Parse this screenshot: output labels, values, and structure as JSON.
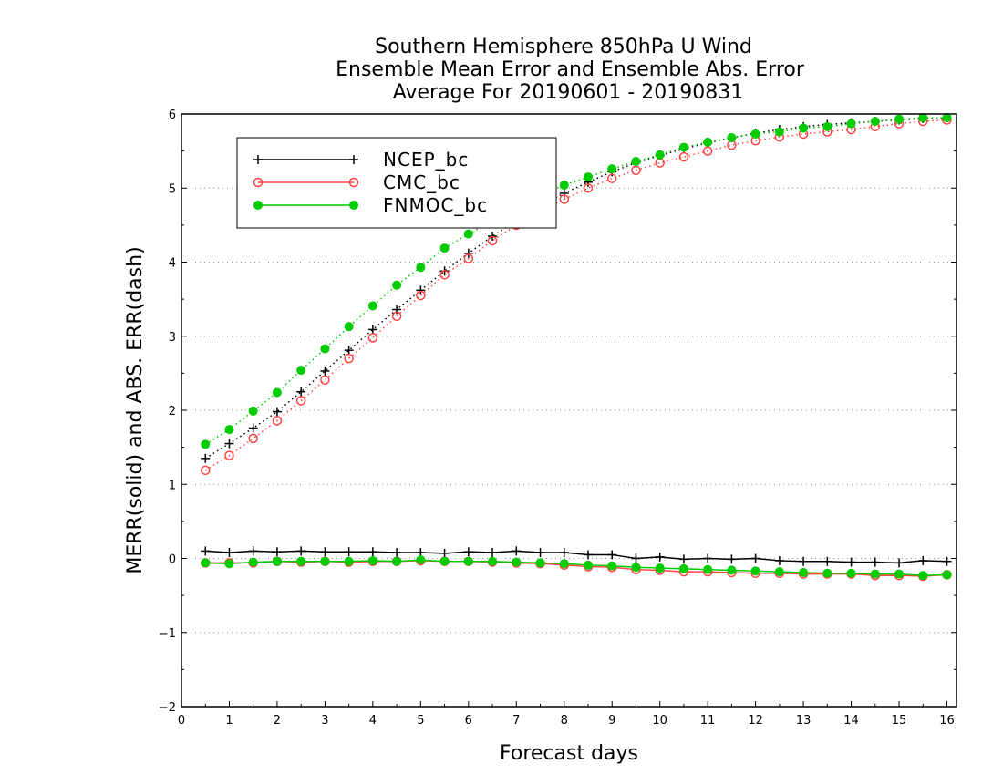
{
  "chart_data": {
    "type": "line",
    "title": [
      "Southern Hemisphere 850hPa U Wind",
      "Ensemble Mean Error and Ensemble Abs. Error",
      "Average For 20190601 - 20190831"
    ],
    "xlabel": "Forecast days",
    "ylabel": "MERR(solid) and ABS. ERR(dash)",
    "xlim": [
      0,
      16.2
    ],
    "ylim": [
      -2,
      6
    ],
    "xticks": [
      0,
      1,
      2,
      3,
      4,
      5,
      6,
      7,
      8,
      9,
      10,
      11,
      12,
      13,
      14,
      15,
      16
    ],
    "yticks": [
      -2,
      -1,
      0,
      1,
      2,
      3,
      4,
      5,
      6
    ],
    "grid": "horizontal dotted",
    "legend_position": "top-left",
    "x": [
      0.5,
      1,
      1.5,
      2,
      2.5,
      3,
      3.5,
      4,
      4.5,
      5,
      5.5,
      6,
      6.5,
      7,
      7.5,
      8,
      8.5,
      9,
      9.5,
      10,
      10.5,
      11,
      11.5,
      12,
      12.5,
      13,
      13.5,
      14,
      14.5,
      15,
      15.5,
      16
    ],
    "series": [
      {
        "name": "NCEP_bc",
        "color": "#000000",
        "marker": "plus",
        "merr": [
          0.1,
          0.08,
          0.1,
          0.09,
          0.1,
          0.09,
          0.09,
          0.09,
          0.08,
          0.08,
          0.07,
          0.09,
          0.08,
          0.1,
          0.08,
          0.08,
          0.05,
          0.05,
          0.0,
          0.02,
          -0.01,
          0.0,
          -0.01,
          0.0,
          -0.03,
          -0.04,
          -0.04,
          -0.05,
          -0.05,
          -0.06,
          -0.03,
          -0.04
        ],
        "abs_err": [
          1.35,
          1.55,
          1.76,
          1.98,
          2.25,
          2.53,
          2.81,
          3.09,
          3.36,
          3.62,
          3.88,
          4.12,
          4.35,
          4.56,
          4.76,
          4.93,
          5.08,
          5.22,
          5.34,
          5.44,
          5.53,
          5.61,
          5.68,
          5.74,
          5.79,
          5.83,
          5.86,
          5.88,
          5.9,
          5.92,
          5.94,
          5.95
        ]
      },
      {
        "name": "CMC_bc",
        "color": "#ff4444",
        "marker": "open-circle",
        "merr": [
          -0.06,
          -0.06,
          -0.06,
          -0.04,
          -0.05,
          -0.04,
          -0.05,
          -0.04,
          -0.04,
          -0.03,
          -0.04,
          -0.04,
          -0.05,
          -0.06,
          -0.07,
          -0.09,
          -0.11,
          -0.12,
          -0.15,
          -0.16,
          -0.18,
          -0.18,
          -0.19,
          -0.2,
          -0.2,
          -0.21,
          -0.21,
          -0.21,
          -0.23,
          -0.23,
          -0.24,
          -0.22
        ],
        "abs_err": [
          1.19,
          1.39,
          1.62,
          1.86,
          2.13,
          2.41,
          2.7,
          2.98,
          3.27,
          3.55,
          3.83,
          4.05,
          4.29,
          4.5,
          4.69,
          4.85,
          5.0,
          5.13,
          5.24,
          5.34,
          5.42,
          5.5,
          5.58,
          5.64,
          5.69,
          5.73,
          5.76,
          5.79,
          5.83,
          5.87,
          5.9,
          5.92
        ]
      },
      {
        "name": "FNMOC_bc",
        "color": "#00cc00",
        "marker": "filled-circle",
        "merr": [
          -0.06,
          -0.07,
          -0.05,
          -0.04,
          -0.04,
          -0.04,
          -0.04,
          -0.03,
          -0.04,
          -0.02,
          -0.04,
          -0.04,
          -0.04,
          -0.05,
          -0.06,
          -0.07,
          -0.09,
          -0.1,
          -0.12,
          -0.13,
          -0.14,
          -0.15,
          -0.16,
          -0.17,
          -0.18,
          -0.19,
          -0.2,
          -0.2,
          -0.21,
          -0.21,
          -0.23,
          -0.22
        ],
        "abs_err": [
          1.54,
          1.74,
          1.99,
          2.24,
          2.54,
          2.83,
          3.13,
          3.41,
          3.69,
          3.93,
          4.19,
          4.38,
          4.56,
          4.74,
          4.9,
          5.04,
          5.15,
          5.26,
          5.36,
          5.45,
          5.55,
          5.62,
          5.68,
          5.73,
          5.76,
          5.81,
          5.83,
          5.87,
          5.9,
          5.93,
          5.95,
          5.95
        ]
      }
    ]
  }
}
